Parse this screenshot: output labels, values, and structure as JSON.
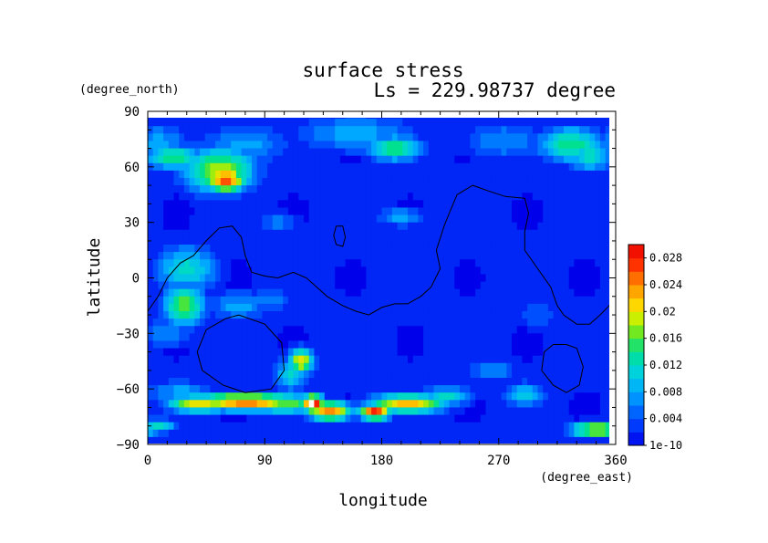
{
  "chart_data": {
    "type": "heatmap",
    "title": "surface stress",
    "subtitle": "Ls = 229.98737 degree",
    "xlabel": "longitude",
    "ylabel": "latitude",
    "x_unit": "(degree_east)",
    "y_unit": "(degree_north)",
    "xlim": [
      0,
      360
    ],
    "ylim": [
      -90,
      90
    ],
    "x_ticks": [
      "0",
      "90",
      "180",
      "270",
      "360"
    ],
    "y_ticks": [
      "90",
      "60",
      "30",
      "0",
      "−30",
      "−60",
      "−90"
    ],
    "colorbar_labels": [
      "1e-10",
      "0.004",
      "0.008",
      "0.012",
      "0.016",
      "0.02",
      "0.024",
      "0.028"
    ],
    "colorbar_range": [
      0,
      0.03
    ],
    "grid": false,
    "background_level": 0.003,
    "features": [
      {
        "lon": 60,
        "lat": 53,
        "value": 0.028,
        "sx": 11,
        "sy": 5
      },
      {
        "lon": 55,
        "lat": 58,
        "value": 0.02,
        "sx": 20,
        "sy": 9
      },
      {
        "lon": 20,
        "lat": 65,
        "value": 0.016,
        "sx": 16,
        "sy": 5
      },
      {
        "lon": 8,
        "lat": 72,
        "value": 0.009,
        "sx": 18,
        "sy": 9
      },
      {
        "lon": 75,
        "lat": 72,
        "value": 0.009,
        "sx": 25,
        "sy": 8
      },
      {
        "lon": 190,
        "lat": 70,
        "value": 0.017,
        "sx": 15,
        "sy": 5
      },
      {
        "lon": 160,
        "lat": 78,
        "value": 0.009,
        "sx": 35,
        "sy": 8
      },
      {
        "lon": 275,
        "lat": 74,
        "value": 0.008,
        "sx": 25,
        "sy": 8
      },
      {
        "lon": 325,
        "lat": 72,
        "value": 0.016,
        "sx": 18,
        "sy": 7
      },
      {
        "lon": 340,
        "lat": 66,
        "value": 0.014,
        "sx": 12,
        "sy": 6
      },
      {
        "lon": 195,
        "lat": 33,
        "value": 0.009,
        "sx": 14,
        "sy": 4
      },
      {
        "lon": 100,
        "lat": 30,
        "value": 0.007,
        "sx": 12,
        "sy": 4
      },
      {
        "lon": 30,
        "lat": 5,
        "value": 0.013,
        "sx": 18,
        "sy": 9
      },
      {
        "lon": 28,
        "lat": -15,
        "value": 0.018,
        "sx": 12,
        "sy": 8
      },
      {
        "lon": 70,
        "lat": -15,
        "value": 0.009,
        "sx": 18,
        "sy": 6
      },
      {
        "lon": 95,
        "lat": -12,
        "value": 0.008,
        "sx": 12,
        "sy": 5
      },
      {
        "lon": 15,
        "lat": -30,
        "value": 0.008,
        "sx": 15,
        "sy": 6
      },
      {
        "lon": 118,
        "lat": -45,
        "value": 0.022,
        "sx": 7,
        "sy": 5
      },
      {
        "lon": 110,
        "lat": -52,
        "value": 0.012,
        "sx": 10,
        "sy": 7
      },
      {
        "lon": 25,
        "lat": -62,
        "value": 0.009,
        "sx": 20,
        "sy": 5
      },
      {
        "lon": 75,
        "lat": -67,
        "value": 0.026,
        "sx": 30,
        "sy": 3.5
      },
      {
        "lon": 40,
        "lat": -68,
        "value": 0.022,
        "sx": 18,
        "sy": 3.5
      },
      {
        "lon": 105,
        "lat": -68,
        "value": 0.018,
        "sx": 20,
        "sy": 4
      },
      {
        "lon": 127,
        "lat": -68,
        "value": 0.032,
        "sx": 6,
        "sy": 3.5
      },
      {
        "lon": 140,
        "lat": -72,
        "value": 0.026,
        "sx": 12,
        "sy": 4
      },
      {
        "lon": 175,
        "lat": -73,
        "value": 0.031,
        "sx": 9,
        "sy": 2.5
      },
      {
        "lon": 200,
        "lat": -68,
        "value": 0.024,
        "sx": 22,
        "sy": 3.5
      },
      {
        "lon": 230,
        "lat": -64,
        "value": 0.013,
        "sx": 14,
        "sy": 4
      },
      {
        "lon": 290,
        "lat": -63,
        "value": 0.011,
        "sx": 12,
        "sy": 5
      },
      {
        "lon": 265,
        "lat": -50,
        "value": 0.008,
        "sx": 14,
        "sy": 5
      },
      {
        "lon": 300,
        "lat": -20,
        "value": 0.006,
        "sx": 14,
        "sy": 6
      },
      {
        "lon": 345,
        "lat": -82,
        "value": 0.022,
        "sx": 15,
        "sy": 3
      },
      {
        "lon": 8,
        "lat": -80,
        "value": 0.014,
        "sx": 10,
        "sy": 3
      }
    ],
    "contours": [
      [
        [
          0,
          -18
        ],
        [
          8,
          -10
        ],
        [
          15,
          0
        ],
        [
          25,
          8
        ],
        [
          35,
          12
        ],
        [
          45,
          20
        ],
        [
          55,
          27
        ],
        [
          65,
          28
        ],
        [
          72,
          22
        ],
        [
          75,
          12
        ],
        [
          80,
          3
        ],
        [
          90,
          1
        ],
        [
          100,
          0
        ],
        [
          112,
          3
        ],
        [
          122,
          0
        ],
        [
          130,
          -5
        ],
        [
          138,
          -10
        ],
        [
          150,
          -15
        ],
        [
          160,
          -18
        ],
        [
          170,
          -20
        ],
        [
          180,
          -16
        ],
        [
          190,
          -14
        ],
        [
          200,
          -14
        ],
        [
          210,
          -10
        ],
        [
          218,
          -5
        ],
        [
          225,
          5
        ],
        [
          222,
          15
        ],
        [
          228,
          28
        ],
        [
          232,
          35
        ],
        [
          238,
          45
        ],
        [
          250,
          50
        ],
        [
          262,
          47
        ],
        [
          275,
          44
        ],
        [
          290,
          43
        ],
        [
          293,
          35
        ],
        [
          290,
          25
        ],
        [
          290,
          15
        ],
        [
          300,
          5
        ],
        [
          310,
          -5
        ],
        [
          315,
          -15
        ],
        [
          320,
          -20
        ],
        [
          330,
          -25
        ],
        [
          340,
          -25
        ],
        [
          348,
          -20
        ],
        [
          355,
          -15
        ],
        [
          360,
          -20
        ]
      ],
      [
        [
          145,
          28
        ],
        [
          150,
          28
        ],
        [
          152,
          22
        ],
        [
          150,
          17
        ],
        [
          145,
          18
        ],
        [
          143,
          23
        ],
        [
          145,
          28
        ]
      ],
      [
        [
          70,
          -20
        ],
        [
          90,
          -25
        ],
        [
          103,
          -35
        ],
        [
          105,
          -50
        ],
        [
          95,
          -60
        ],
        [
          75,
          -62
        ],
        [
          58,
          -58
        ],
        [
          42,
          -50
        ],
        [
          38,
          -40
        ],
        [
          45,
          -28
        ],
        [
          60,
          -22
        ],
        [
          70,
          -20
        ]
      ],
      [
        [
          322,
          -36
        ],
        [
          330,
          -38
        ],
        [
          335,
          -48
        ],
        [
          332,
          -58
        ],
        [
          322,
          -62
        ],
        [
          312,
          -58
        ],
        [
          303,
          -50
        ],
        [
          305,
          -40
        ],
        [
          312,
          -36
        ],
        [
          322,
          -36
        ]
      ]
    ]
  }
}
